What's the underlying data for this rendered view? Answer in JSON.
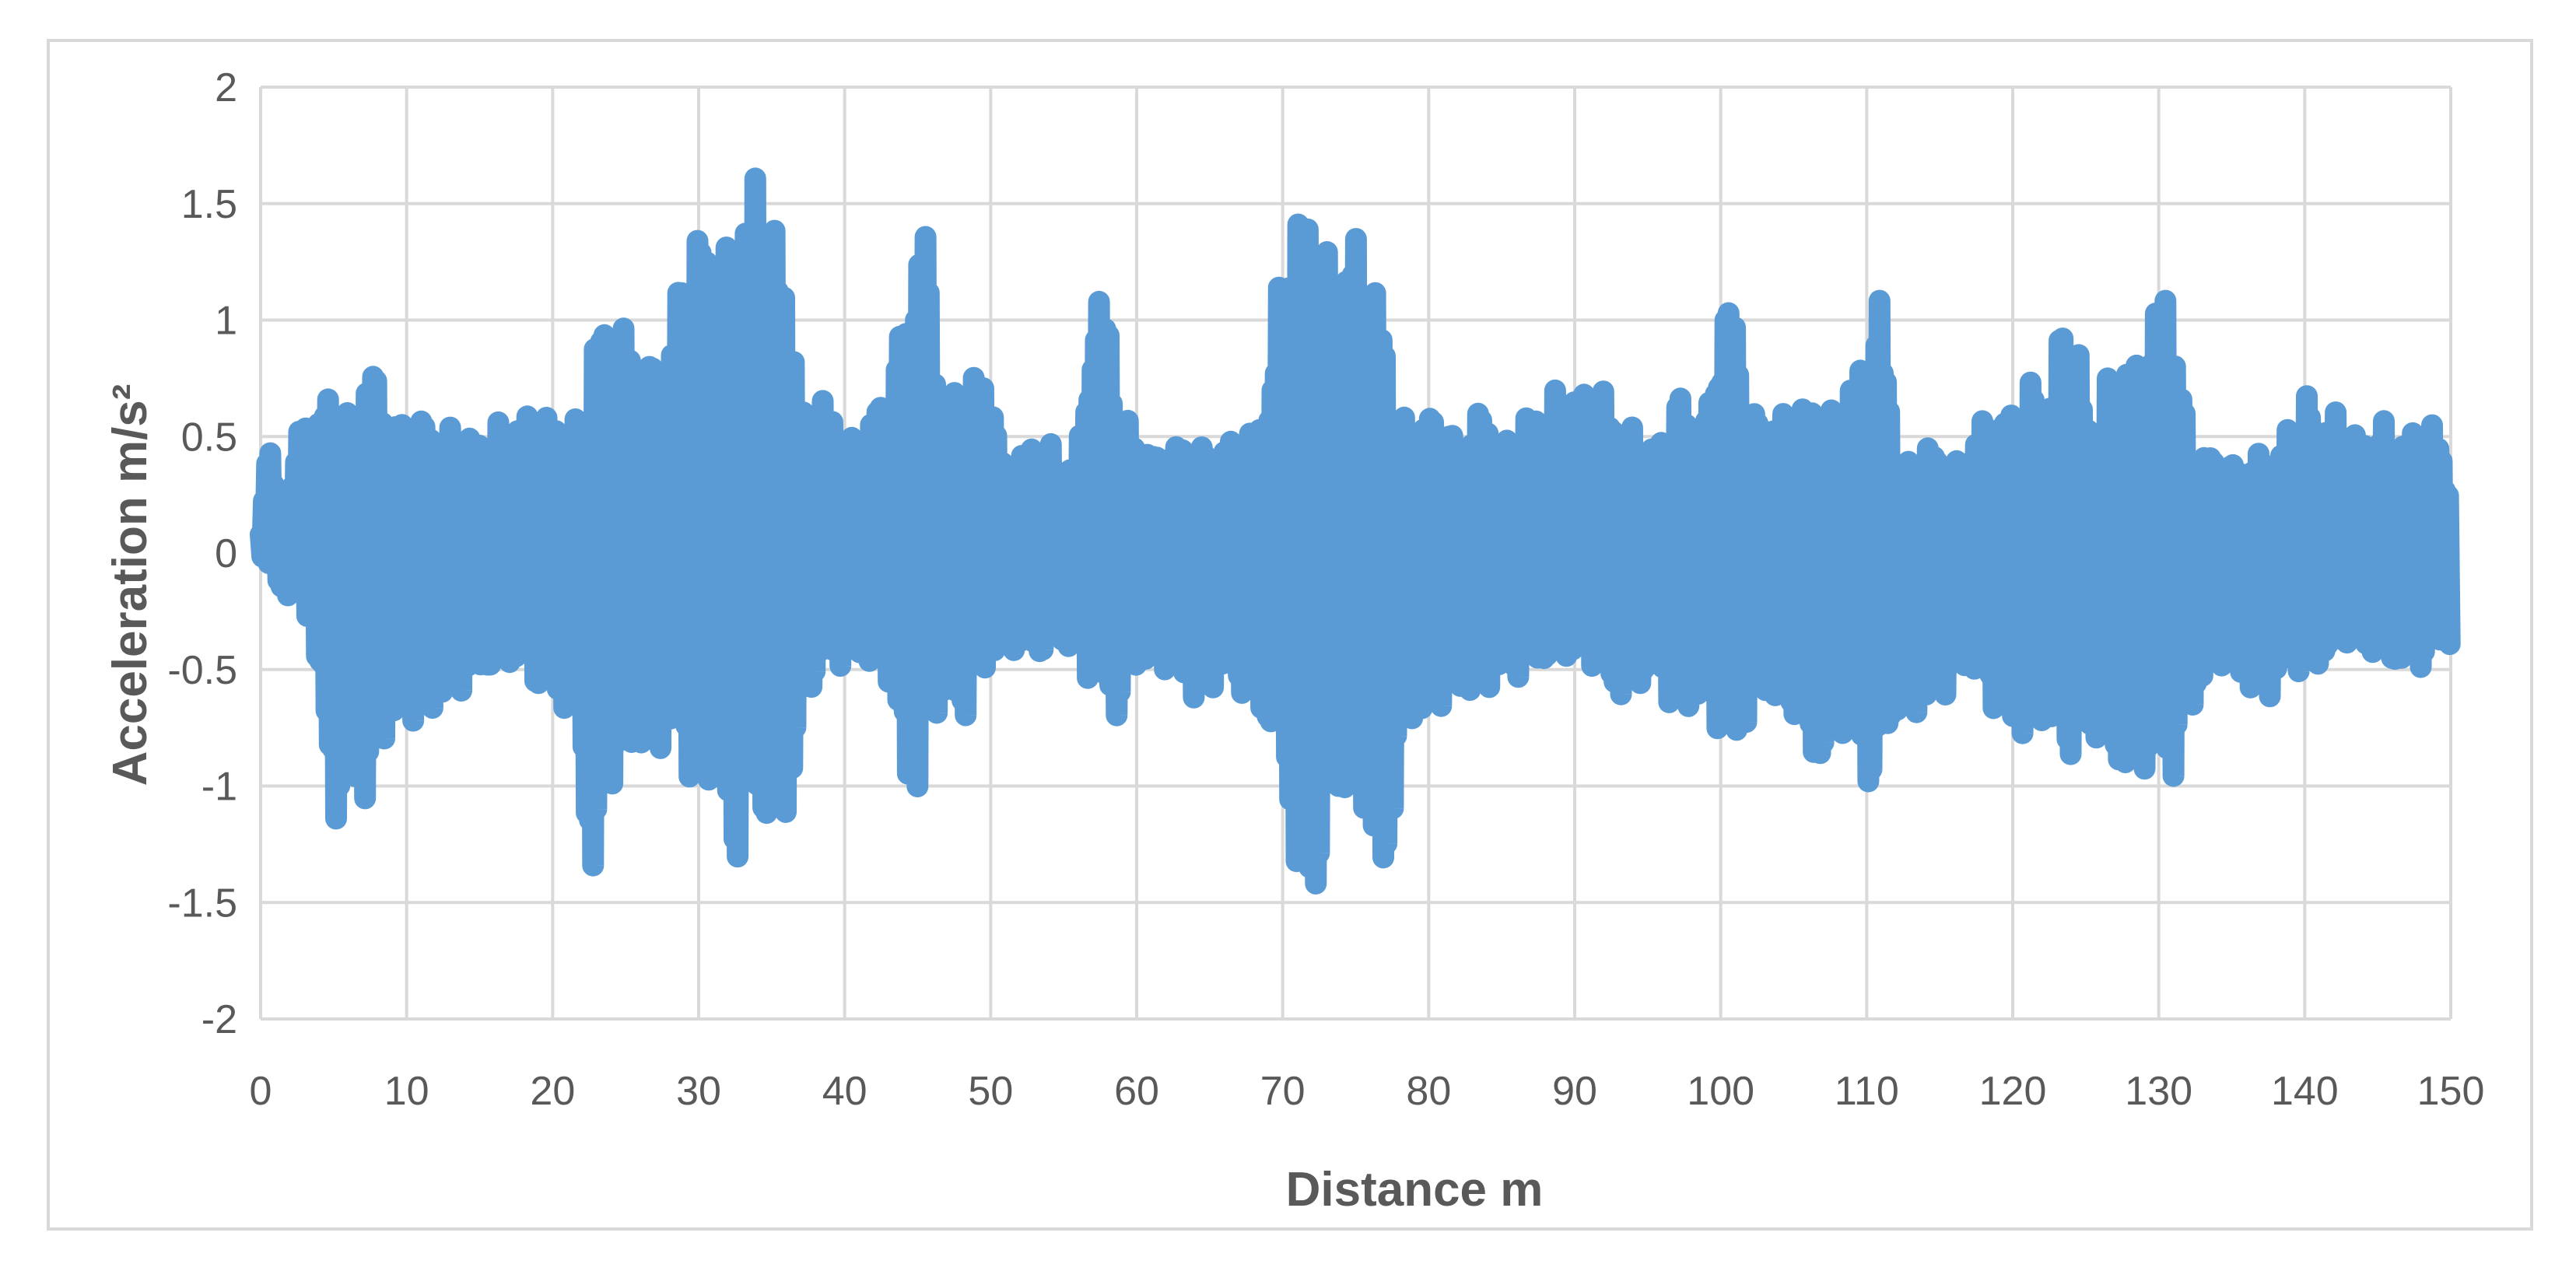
{
  "chart_data": {
    "type": "line",
    "title": "",
    "xlabel": "Distance  m",
    "ylabel": "Acceleration m/s²",
    "xlim": [
      0,
      150
    ],
    "ylim": [
      -2,
      2
    ],
    "x_ticks": [
      "0",
      "10",
      "20",
      "30",
      "40",
      "50",
      "60",
      "70",
      "80",
      "90",
      "100",
      "110",
      "120",
      "130",
      "140",
      "150"
    ],
    "y_ticks": [
      "2",
      "1.5",
      "1",
      "0.5",
      "0",
      "-0.5",
      "-1",
      "-1.5",
      "-2"
    ],
    "grid": true,
    "legend": "none",
    "series_color": "#5b9bd5",
    "series": [
      {
        "x": [
          0,
          0.5,
          1,
          2,
          3,
          3.5,
          4,
          5,
          5.5,
          6,
          7,
          7.5,
          8,
          8.5,
          9,
          10,
          11,
          12,
          13,
          14,
          15,
          16,
          17,
          18,
          19,
          20,
          21,
          22,
          22.5,
          23,
          24,
          25,
          26,
          27,
          28,
          29,
          29.5,
          30,
          31,
          31.5,
          32,
          32.5,
          33,
          34,
          34.5,
          35,
          36,
          37,
          38,
          39,
          40,
          41,
          42,
          43,
          44,
          44.5,
          45,
          45.5,
          46,
          47,
          48,
          49,
          50,
          51,
          52,
          53,
          54,
          55,
          56,
          57,
          57.5,
          58,
          59,
          60,
          61,
          62,
          63,
          64,
          65,
          66,
          67,
          68,
          69,
          70,
          70.5,
          71,
          72,
          73,
          74,
          75,
          76,
          76.5,
          77,
          78,
          79,
          80,
          81,
          82,
          83,
          84,
          85,
          86,
          87,
          88,
          89,
          90,
          91,
          92,
          93,
          94,
          95,
          96,
          97,
          98,
          99,
          100,
          100.5,
          101,
          102,
          103,
          104,
          105,
          106,
          106.5,
          107,
          108,
          109,
          110,
          110.5,
          111,
          112,
          113,
          114,
          115,
          116,
          117,
          118,
          119,
          120,
          121,
          122,
          123,
          123.5,
          124,
          125,
          126,
          127,
          127.5,
          128,
          129,
          130,
          130.5,
          131,
          132,
          133,
          134,
          135,
          136,
          137,
          138,
          139,
          140,
          141,
          142,
          143,
          144,
          145,
          146,
          147,
          148,
          149,
          150
        ],
        "y_max": [
          0.1,
          0.5,
          0.3,
          0.3,
          0.65,
          0.65,
          0.6,
          0.8,
          0.8,
          0.6,
          0.85,
          0.85,
          0.78,
          0.75,
          0.6,
          0.6,
          0.6,
          0.58,
          0.55,
          0.55,
          0.5,
          0.55,
          0.6,
          0.6,
          0.6,
          0.6,
          0.62,
          0.55,
          0.8,
          1.05,
          1.0,
          1.0,
          0.85,
          0.85,
          0.85,
          1.4,
          1.4,
          1.4,
          1.45,
          1.45,
          1.3,
          1.2,
          1.4,
          1.75,
          1.7,
          1.4,
          1.35,
          0.6,
          0.7,
          0.65,
          0.55,
          0.45,
          0.65,
          0.7,
          1.05,
          1.1,
          1.48,
          1.45,
          0.95,
          0.75,
          0.7,
          0.8,
          0.8,
          0.3,
          0.45,
          0.48,
          0.48,
          0.4,
          0.45,
          1.1,
          1.12,
          1.08,
          0.6,
          0.55,
          0.45,
          0.45,
          0.5,
          0.5,
          0.45,
          0.5,
          0.5,
          0.55,
          0.7,
          1.3,
          1.55,
          1.55,
          1.45,
          1.3,
          1.35,
          1.38,
          1.15,
          1.2,
          1.0,
          0.6,
          0.6,
          0.62,
          0.62,
          0.5,
          0.6,
          0.65,
          0.5,
          0.5,
          0.65,
          0.6,
          0.75,
          0.7,
          0.72,
          0.7,
          0.6,
          0.55,
          0.45,
          0.55,
          0.7,
          0.65,
          0.6,
          1.1,
          1.12,
          1.05,
          0.6,
          0.65,
          0.62,
          0.6,
          0.68,
          0.7,
          0.7,
          0.55,
          0.8,
          0.85,
          1.1,
          1.1,
          0.45,
          0.4,
          0.5,
          0.45,
          0.4,
          0.5,
          0.6,
          0.6,
          0.65,
          0.75,
          0.75,
          0.75,
          1.2,
          1.2,
          0.6,
          0.6,
          0.9,
          0.88,
          0.85,
          0.85,
          1.1,
          1.3,
          1.05,
          0.5,
          0.45,
          0.45,
          0.4,
          0.42,
          0.45,
          0.4,
          0.6,
          0.7,
          0.6,
          0.62,
          0.55,
          0.5,
          0.58,
          0.55,
          0.5,
          0.6,
          0.55,
          0.35
        ],
        "y_min": [
          0,
          -0.1,
          -0.15,
          -0.2,
          -0.3,
          -0.3,
          -0.6,
          -1.15,
          -1.15,
          -1.0,
          -1.1,
          -1.1,
          -0.9,
          -0.8,
          -0.8,
          -0.75,
          -0.7,
          -0.7,
          -0.6,
          -0.6,
          -0.55,
          -0.5,
          -0.5,
          -0.5,
          -0.6,
          -0.65,
          -0.7,
          -0.7,
          -1.5,
          -1.45,
          -1.0,
          -0.95,
          -0.85,
          -0.85,
          -0.85,
          -0.9,
          -1.0,
          -1.05,
          -1.05,
          -1.1,
          -1.4,
          -1.4,
          -1.2,
          -1.2,
          -1.2,
          -1.25,
          -1.2,
          -0.75,
          -0.55,
          -0.5,
          -0.5,
          -0.45,
          -0.55,
          -0.55,
          -1.0,
          -1.1,
          -1.05,
          -0.7,
          -0.7,
          -0.7,
          -0.75,
          -0.6,
          -0.5,
          -0.4,
          -0.45,
          -0.45,
          -0.45,
          -0.4,
          -0.5,
          -0.6,
          -0.65,
          -0.7,
          -0.72,
          -0.5,
          -0.5,
          -0.5,
          -0.55,
          -0.65,
          -0.6,
          -0.55,
          -0.6,
          -0.65,
          -0.78,
          -0.9,
          -1.1,
          -1.6,
          -1.6,
          -1.2,
          -1.1,
          -1.05,
          -1.2,
          -1.6,
          -1.55,
          -0.75,
          -0.75,
          -0.7,
          -0.65,
          -0.65,
          -0.6,
          -0.6,
          -0.55,
          -0.55,
          -0.5,
          -0.5,
          -0.45,
          -0.5,
          -0.5,
          -0.55,
          -0.65,
          -0.6,
          -0.55,
          -0.6,
          -0.7,
          -0.7,
          -0.6,
          -0.8,
          -0.9,
          -0.9,
          -0.7,
          -0.6,
          -0.75,
          -0.7,
          -0.9,
          -0.95,
          -0.9,
          -0.8,
          -0.85,
          -1.0,
          -1.05,
          -0.95,
          -0.7,
          -0.7,
          -0.7,
          -0.65,
          -0.55,
          -0.5,
          -0.6,
          -0.7,
          -0.8,
          -0.8,
          -0.75,
          -0.85,
          -0.9,
          -0.9,
          -0.8,
          -0.85,
          -0.9,
          -1.0,
          -1.0,
          -0.95,
          -0.9,
          -1.0,
          -1.0,
          -0.7,
          -0.6,
          -0.5,
          -0.45,
          -0.6,
          -0.65,
          -0.6,
          -0.5,
          -0.55,
          -0.5,
          -0.45,
          -0.4,
          -0.45,
          -0.45,
          -0.5,
          -0.5,
          -0.5,
          -0.45,
          -0.4
        ]
      }
    ]
  }
}
